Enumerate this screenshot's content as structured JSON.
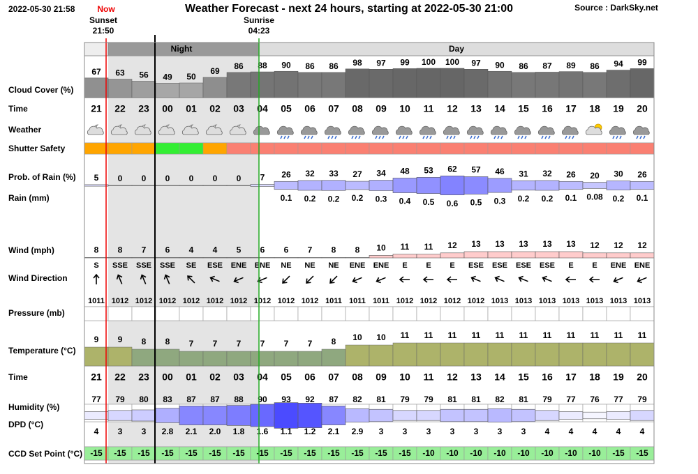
{
  "header": {
    "timestamp": "2022-05-30 21:58",
    "now": "Now",
    "title": "Weather Forecast - next 24 hours, starting at 2022-05-30 21:00",
    "source": "Source : DarkSky.net",
    "sunset_label": "Sunset",
    "sunset_time": "21:50",
    "sunrise_label": "Sunrise",
    "sunrise_time": "04:23",
    "night": "Night",
    "day": "Day"
  },
  "row_labels": {
    "cloud": "Cloud Cover (%)",
    "time": "Time",
    "weather": "Weather",
    "shutter": "Shutter Safety",
    "rain_prob": "Prob. of Rain (%)",
    "rain": "Rain (mm)",
    "wind": "Wind (mph)",
    "wind_dir": "Wind Direction",
    "pressure": "Pressure (mb)",
    "temperature": "Temperature (°C)",
    "time2": "Time",
    "humidity": "Humidity (%)",
    "dpd": "DPD (°C)",
    "ccd": "CCD Set Point (°C)"
  },
  "hours": [
    "21",
    "22",
    "23",
    "00",
    "01",
    "02",
    "03",
    "04",
    "05",
    "06",
    "07",
    "08",
    "09",
    "10",
    "11",
    "12",
    "13",
    "14",
    "15",
    "16",
    "17",
    "18",
    "19",
    "20"
  ],
  "cloud_cover": [
    67,
    63,
    56,
    49,
    50,
    69,
    86,
    88,
    90,
    86,
    86,
    98,
    97,
    99,
    100,
    100,
    97,
    90,
    86,
    87,
    89,
    86,
    94,
    99
  ],
  "shutter_safety": [
    "#ffa500",
    "#ffa500",
    "#ffa500",
    "#33ee33",
    "#33ee33",
    "#ffa500",
    "#fa8072",
    "#fa8072",
    "#fa8072",
    "#fa8072",
    "#fa8072",
    "#fa8072",
    "#fa8072",
    "#fa8072",
    "#fa8072",
    "#fa8072",
    "#fa8072",
    "#fa8072",
    "#fa8072",
    "#fa8072",
    "#fa8072",
    "#fa8072",
    "#fa8072",
    "#fa8072"
  ],
  "rain_probability": [
    5,
    0,
    0,
    0,
    0,
    0,
    0,
    7,
    26,
    32,
    33,
    27,
    34,
    48,
    53,
    62,
    57,
    46,
    31,
    32,
    26,
    20,
    30,
    26
  ],
  "rain_mm": [
    null,
    null,
    null,
    null,
    null,
    null,
    null,
    null,
    0.1,
    0.2,
    0.2,
    0.2,
    0.3,
    0.4,
    0.5,
    0.6,
    0.5,
    0.3,
    0.2,
    0.2,
    0.1,
    0.08,
    0.2,
    0.1
  ],
  "wind_speed": [
    8,
    8,
    7,
    6,
    4,
    4,
    5,
    6,
    6,
    7,
    8,
    8,
    10,
    11,
    11,
    12,
    13,
    13,
    13,
    13,
    13,
    12,
    12,
    12
  ],
  "wind_direction": [
    "S",
    "SSE",
    "SSE",
    "SSE",
    "SE",
    "ESE",
    "ENE",
    "ENE",
    "NE",
    "NE",
    "NE",
    "ENE",
    "ENE",
    "E",
    "E",
    "E",
    "ESE",
    "ESE",
    "ESE",
    "ESE",
    "E",
    "E",
    "ENE",
    "ENE"
  ],
  "pressure": [
    1011,
    1012,
    1012,
    1012,
    1012,
    1012,
    1012,
    1012,
    1012,
    1012,
    1011,
    1011,
    1011,
    1012,
    1012,
    1012,
    1012,
    1013,
    1013,
    1013,
    1013,
    1013,
    1013,
    1013
  ],
  "temperature": [
    9,
    9,
    8,
    8,
    7,
    7,
    7,
    7,
    7,
    7,
    8,
    10,
    10,
    11,
    11,
    11,
    11,
    11,
    11,
    11,
    11,
    11,
    11,
    11
  ],
  "humidity": [
    77,
    79,
    80,
    83,
    87,
    87,
    88,
    90,
    93,
    92,
    87,
    82,
    81,
    79,
    79,
    81,
    81,
    82,
    81,
    79,
    77,
    76,
    77,
    79
  ],
  "dpd": [
    "4",
    "3",
    "3",
    "2.8",
    "2.1",
    "2.0",
    "1.8",
    "1.6",
    "1.1",
    "1.2",
    "2.1",
    "2.9",
    "3",
    "3",
    "3",
    "3",
    "3",
    "3",
    "3",
    "4",
    "4",
    "4",
    "4",
    "4"
  ],
  "ccd_set_point": [
    -15,
    -15,
    -15,
    -15,
    -15,
    -15,
    -15,
    -15,
    -15,
    -15,
    -15,
    -15,
    -15,
    -15,
    -10,
    -10,
    -10,
    -10,
    -10,
    -10,
    -10,
    -10,
    -15,
    -15
  ]
}
